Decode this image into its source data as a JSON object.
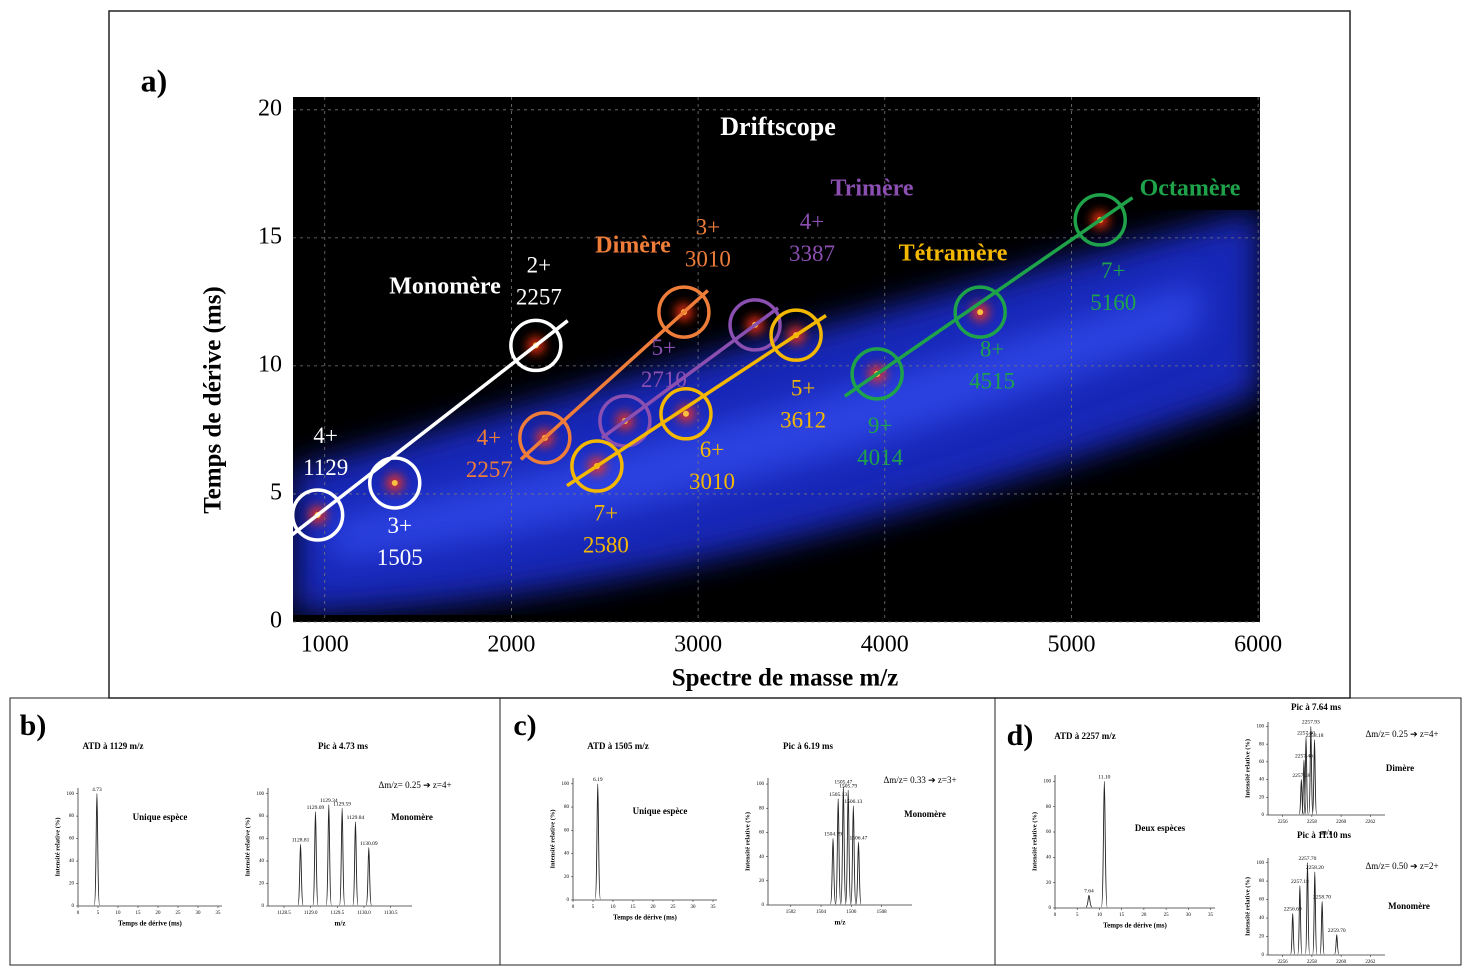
{
  "panel_labels": [
    "a)",
    "b)",
    "c)",
    "d)"
  ],
  "chart_data": [
    {
      "type": "scatter",
      "title": "Driftscope",
      "xlabel": "Spectre de masse m/z",
      "ylabel": "Temps de dérive (ms)",
      "xlim": [
        830,
        6010
      ],
      "ylim": [
        0,
        20.5
      ],
      "xticks": [
        1000,
        2000,
        3000,
        4000,
        5000,
        6000
      ],
      "yticks": [
        0,
        5,
        10,
        15,
        20
      ],
      "grid": true,
      "series": [
        {
          "name": "Monomère",
          "color": "#ffffff",
          "x": [
            962,
            1375,
            2131
          ],
          "values": [
            4.18,
            5.43,
            10.8
          ],
          "charges": [
            "4+",
            "3+",
            "2+"
          ],
          "mz_labels": [
            1129,
            1505,
            2257
          ]
        },
        {
          "name": "Dimère",
          "color": "#ef7d3a",
          "x": [
            2179,
            2924
          ],
          "values": [
            7.19,
            12.1
          ],
          "charges": [
            "4+",
            "3+"
          ],
          "mz_labels": [
            2257,
            3010
          ]
        },
        {
          "name": "Trimère",
          "color": "#8a4fb0",
          "x": [
            2608,
            3305
          ],
          "values": [
            7.85,
            11.6
          ],
          "charges": [
            "5+",
            "4+"
          ],
          "mz_labels": [
            2710,
            3387
          ]
        },
        {
          "name": "Tétramère",
          "color": "#f5b800",
          "x": [
            2458,
            2935,
            3525
          ],
          "values": [
            6.09,
            8.13,
            11.2
          ],
          "charges": [
            "7+",
            "6+",
            "5+"
          ],
          "mz_labels": [
            2580,
            3010,
            3612
          ]
        },
        {
          "name": "Octamère",
          "color": "#1fa34a",
          "x": [
            3959,
            4511,
            5154
          ],
          "values": [
            9.69,
            12.1,
            15.7
          ],
          "charges": [
            "9+",
            "8+",
            "7+"
          ],
          "mz_labels": [
            4014,
            4515,
            5160
          ]
        }
      ]
    },
    {
      "type": "line",
      "title": "ATD à 1129 m/z",
      "xlabel": "Temps de dérive (ms)",
      "ylabel": "Intensité relative (%)",
      "notes": [
        "Unique espèce"
      ],
      "x": [
        4.73
      ],
      "values": [
        100
      ],
      "peak_labels": [
        "4.73"
      ],
      "xlim": [
        0,
        36
      ],
      "ylim": [
        0,
        105
      ],
      "xticks": [
        0,
        5,
        10,
        15,
        20,
        25,
        30,
        35
      ],
      "yticks": [
        0,
        20,
        40,
        60,
        80,
        100
      ]
    },
    {
      "type": "line",
      "title": "Pic à 4.73 ms",
      "xlabel": "m/z",
      "ylabel": "Intensité relative (%)",
      "notes": [
        "Δm/z= 0.25 ➔ z=4+",
        "Monomère"
      ],
      "x": [
        1128.81,
        1129.09,
        1129.34,
        1129.59,
        1129.84,
        1130.09
      ],
      "values": [
        55,
        84,
        90,
        87,
        75,
        52
      ],
      "peak_labels": [
        "1128.81",
        "1129.09",
        "1129.34",
        "1129.59",
        "1129.84",
        "1130.09"
      ],
      "xlim": [
        1128.2,
        1130.9
      ],
      "ylim": [
        0,
        105
      ],
      "xticks": [
        1128.5,
        {
          "value": 1129,
          "label": "1129.0"
        },
        1129.5,
        {
          "value": 1130,
          "label": "1130.0"
        },
        1130.5
      ],
      "yticks": [
        0,
        20,
        40,
        60,
        80,
        100
      ]
    },
    {
      "type": "line",
      "title": "ATD à 1505 m/z",
      "xlabel": "Temps de dérive (ms)",
      "ylabel": "Intensité relative (%)",
      "notes": [
        "Unique espèce"
      ],
      "x": [
        6.19
      ],
      "values": [
        100
      ],
      "peak_labels": [
        "6.19"
      ],
      "xlim": [
        0,
        36
      ],
      "ylim": [
        0,
        105
      ],
      "xticks": [
        0,
        5,
        10,
        15,
        20,
        25,
        30,
        35
      ],
      "yticks": [
        0,
        20,
        40,
        60,
        80,
        100
      ]
    },
    {
      "type": "line",
      "title": "Pic à 6.19 ms",
      "xlabel": "m/z",
      "ylabel": "Intensité relative (%)",
      "notes": [
        "Δm/z= 0.33 ➔ z=3+",
        "Monomère"
      ],
      "x": [
        1504.79,
        1505.13,
        1505.47,
        1505.79,
        1506.13,
        1506.47
      ],
      "values": [
        55,
        88,
        98,
        95,
        82,
        52
      ],
      "peak_labels": [
        "1504.79",
        "1505.13",
        "1505.47",
        "1505.79",
        "1506.13",
        "1506.47"
      ],
      "xlim": [
        1500.5,
        1510
      ],
      "ylim": [
        0,
        105
      ],
      "xticks": [
        1502,
        1504,
        1506,
        1508
      ],
      "yticks": [
        0,
        20,
        40,
        60,
        80,
        100
      ]
    },
    {
      "type": "line",
      "title": "ATD à 2257 m/z",
      "xlabel": "Temps de dérive (ms)",
      "ylabel": "Intensité relative (%)",
      "notes": [
        "Deux espèces"
      ],
      "x": [
        7.64,
        11.1
      ],
      "values": [
        10,
        100
      ],
      "peak_labels": [
        "7.64",
        "11.10"
      ],
      "xlim": [
        0,
        36
      ],
      "ylim": [
        0,
        105
      ],
      "xticks": [
        0,
        5,
        10,
        15,
        20,
        25,
        30,
        35
      ],
      "yticks": [
        0,
        20,
        40,
        60,
        80,
        100
      ]
    },
    {
      "type": "line",
      "title": "Pic à 7.64 ms",
      "xlabel": "m/z",
      "ylabel": "Intensité relative (%)",
      "notes": [
        "Δm/z= 0.25 ➔ z=4+",
        "Dimère"
      ],
      "x": [
        2257.28,
        2257.46,
        2257.6,
        2257.93,
        2258.18
      ],
      "values": [
        40,
        62,
        88,
        100,
        85
      ],
      "peak_labels": [
        "2257.28",
        "2257.46",
        "2257.60",
        "2257.93",
        "2258.18"
      ],
      "xlim": [
        2255,
        2263
      ],
      "ylim": [
        0,
        105
      ],
      "xticks": [
        2256,
        2258,
        2260,
        2262
      ],
      "yticks": [
        0,
        20,
        40,
        60,
        80,
        100
      ]
    },
    {
      "type": "line",
      "title": "Pic à 11.10 ms",
      "xlabel": "m/z",
      "ylabel": "Intensité relative (%)",
      "notes": [
        "Δm/z= 0.50 ➔ z=2+",
        "Monomère"
      ],
      "x": [
        2256.69,
        2257.18,
        2257.7,
        2258.2,
        2258.7,
        2259.7
      ],
      "values": [
        45,
        75,
        100,
        90,
        58,
        22
      ],
      "peak_labels": [
        "2256.69",
        "2257.18",
        "2257.70",
        "2258.20",
        "2258.70",
        "2259.70"
      ],
      "xlim": [
        2255,
        2263
      ],
      "ylim": [
        0,
        105
      ],
      "xticks": [
        2256,
        2258,
        2260,
        2262
      ],
      "yticks": [
        0,
        20,
        40,
        60,
        80,
        100
      ]
    }
  ]
}
